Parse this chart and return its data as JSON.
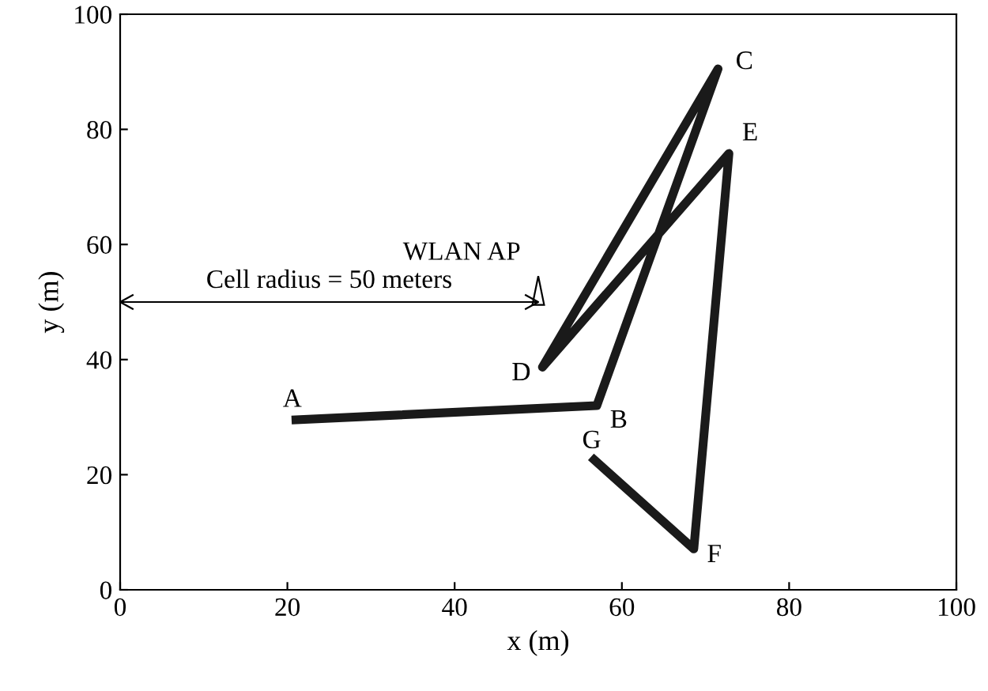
{
  "chart_data": {
    "type": "line",
    "xlabel": "x (m)",
    "ylabel": "y (m)",
    "xlim": [
      0,
      100
    ],
    "ylim": [
      0,
      100
    ],
    "xticks": [
      0,
      20,
      40,
      60,
      80,
      100
    ],
    "yticks": [
      0,
      20,
      40,
      60,
      80,
      100
    ],
    "grid": false,
    "legend": false,
    "marker": "none",
    "line_style": "solid",
    "series": [
      {
        "color": "#1a1a1a",
        "x": [
          20.5,
          57,
          71.5,
          50.5,
          72.8,
          68.6,
          56.3
        ],
        "values": [
          29.5,
          32,
          90.5,
          38.7,
          75.8,
          7.1,
          23.1
        ]
      },
      {
        "type": "line",
        "color": "#000000",
        "x": [
          0,
          50
        ],
        "values": [
          50,
          50
        ]
      }
    ],
    "annotations": [
      {
        "text": "A",
        "x": 20.5,
        "y": 29.5
      },
      {
        "text": "B",
        "x": 57,
        "y": 32
      },
      {
        "text": "C",
        "x": 71.5,
        "y": 90.5
      },
      {
        "text": "D",
        "x": 50.5,
        "y": 38.7
      },
      {
        "text": "E",
        "x": 72.8,
        "y": 75.8
      },
      {
        "text": "F",
        "x": 68.6,
        "y": 7.1
      },
      {
        "text": "G",
        "x": 56.3,
        "y": 23.1
      },
      {
        "text": "WLAN AP",
        "x": 50,
        "y": 52
      },
      "Cell radius = 50 meters"
    ]
  }
}
